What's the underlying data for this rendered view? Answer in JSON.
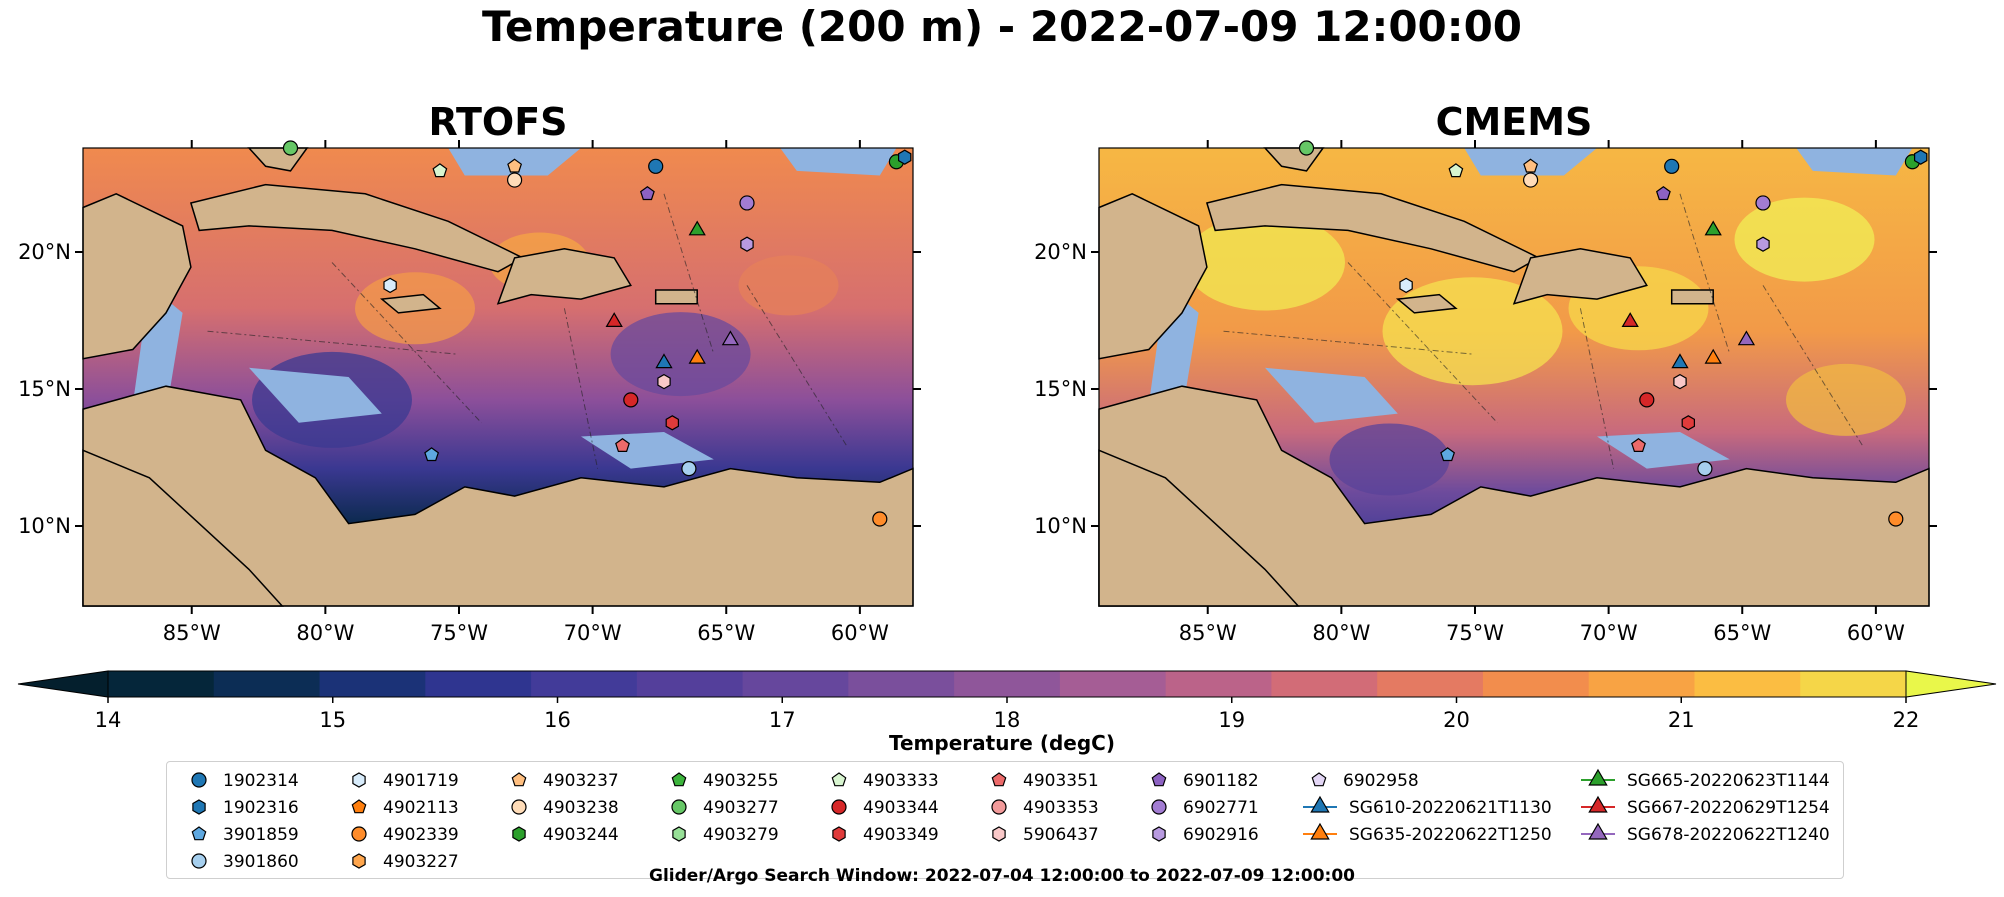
{
  "title": "Temperature (200 m) - 2022-07-09 12:00:00",
  "panels": [
    {
      "title": "RTOFS",
      "palette": "warm"
    },
    {
      "title": "CMEMS",
      "palette": "hot"
    }
  ],
  "axes": {
    "y_ticks": [
      "20°N",
      "15°N",
      "10°N"
    ],
    "x_ticks": [
      "85°W",
      "80°W",
      "75°W",
      "70°W",
      "65°W",
      "60°W"
    ]
  },
  "colorbar": {
    "label": "Temperature (degC)",
    "ticks": [
      "14",
      "15",
      "16",
      "17",
      "18",
      "19",
      "20",
      "21",
      "22"
    ],
    "min": 14,
    "max": 22,
    "step": 0.5,
    "colors": [
      "#05263a",
      "#0c2d55",
      "#1b3277",
      "#2f3590",
      "#423b99",
      "#543f9b",
      "#66479d",
      "#7a4f9c",
      "#8f569a",
      "#a55d95",
      "#bb6389",
      "#d26c77",
      "#e47a62",
      "#f28d4d",
      "#f8a344",
      "#fbbd42",
      "#f5d648"
    ],
    "extend_low_color": "#041f2d",
    "extend_high_color": "#e9f74a"
  },
  "legend": {
    "items": [
      {
        "label": "1902314",
        "marker": "circle",
        "color": "#1f77b4"
      },
      {
        "label": "1902316",
        "marker": "hexagon",
        "color": "#1f77b4"
      },
      {
        "label": "3901859",
        "marker": "pentagon",
        "color": "#5ea8e0"
      },
      {
        "label": "3901860",
        "marker": "circle",
        "color": "#a6cfee"
      },
      {
        "label": "4901719",
        "marker": "hexagon",
        "color": "#d8ecfb"
      },
      {
        "label": "4902113",
        "marker": "pentagon",
        "color": "#ff7f0e"
      },
      {
        "label": "4902339",
        "marker": "circle",
        "color": "#ff8c2a"
      },
      {
        "label": "4903227",
        "marker": "hexagon",
        "color": "#ffa64d"
      },
      {
        "label": "4903237",
        "marker": "pentagon",
        "color": "#ffbf80"
      },
      {
        "label": "4903238",
        "marker": "circle",
        "color": "#ffdcb8"
      },
      {
        "label": "4903244",
        "marker": "hexagon",
        "color": "#2ca02c"
      },
      {
        "label": "4903255",
        "marker": "pentagon",
        "color": "#3cb43c"
      },
      {
        "label": "4903277",
        "marker": "circle",
        "color": "#66c766"
      },
      {
        "label": "4903279",
        "marker": "hexagon",
        "color": "#97e097"
      },
      {
        "label": "4903333",
        "marker": "pentagon",
        "color": "#d8f5d0"
      },
      {
        "label": "4903344",
        "marker": "circle",
        "color": "#d62728"
      },
      {
        "label": "4903349",
        "marker": "hexagon",
        "color": "#e03b3b"
      },
      {
        "label": "4903351",
        "marker": "pentagon",
        "color": "#ec6a6a"
      },
      {
        "label": "4903353",
        "marker": "circle",
        "color": "#f29a9a"
      },
      {
        "label": "5906437",
        "marker": "hexagon",
        "color": "#f9c8c8"
      },
      {
        "label": "6901182",
        "marker": "pentagon",
        "color": "#8d62c2"
      },
      {
        "label": "6902771",
        "marker": "circle",
        "color": "#a27cd2"
      },
      {
        "label": "6902916",
        "marker": "hexagon",
        "color": "#b89ae0"
      },
      {
        "label": "6902958",
        "marker": "pentagon",
        "color": "#e3d6f5"
      },
      {
        "label": "SG610-20220621T1130",
        "marker": "triangle-line",
        "color": "#1f77b4"
      },
      {
        "label": "SG635-20220622T1250",
        "marker": "triangle-line",
        "color": "#ff7f0e"
      },
      {
        "label": "SG665-20220623T1144",
        "marker": "triangle-line",
        "color": "#2ca02c"
      },
      {
        "label": "SG667-20220629T1254",
        "marker": "triangle-line",
        "color": "#d62728"
      },
      {
        "label": "SG678-20220622T1240",
        "marker": "triangle-line",
        "color": "#9467bd"
      }
    ]
  },
  "footnote": "Glider/Argo Search Window: 2022-07-04 12:00:00 to 2022-07-09 12:00:00",
  "map_colors": {
    "land": "#d2b48c",
    "shelf": "#8fb3e0",
    "border": "#000000"
  }
}
